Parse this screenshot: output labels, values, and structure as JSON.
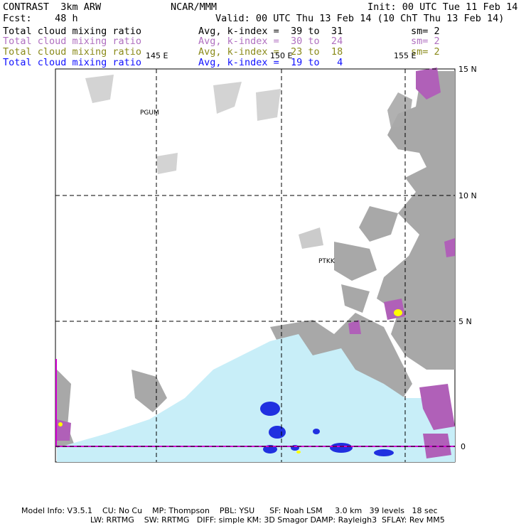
{
  "header": {
    "left": [
      "CONTRAST  3km ARW",
      "Fcst:    48 h"
    ],
    "center": "NCAR/MMM",
    "init": "Init: 00 UTC Tue 11 Feb 14",
    "valid": "Valid: 00 UTC Thu 13 Feb 14 (10 ChT Thu 13 Feb 14)"
  },
  "legend": [
    {
      "label": "Total cloud mixing ratio",
      "avg": "Avg, k-index =  39 to  31",
      "sm": "sm= 2",
      "color": "#000000"
    },
    {
      "label": "Total cloud mixing ratio",
      "avg": "Avg, k-index =  30 to  24",
      "sm": "sm= 2",
      "color": "#b070c0"
    },
    {
      "label": "Total cloud mixing ratio",
      "avg": "Avg, k-index =  23 to  18",
      "sm": "sm= 2",
      "color": "#8a8a1a"
    },
    {
      "label": "Total cloud mixing ratio",
      "avg": "Avg, k-index =  19 to   4",
      "sm": "",
      "color": "#1010ff"
    }
  ],
  "map": {
    "lon_labels": [
      "145 E",
      "150 E",
      "155 E"
    ],
    "lat_labels": [
      "15 N",
      "10 N",
      "5 N",
      "0"
    ],
    "stations": [
      "PGUM",
      "PTKK"
    ],
    "colors": {
      "cloud_gray": "#a8a8a8",
      "ice_light": "#c8eef8",
      "purple": "#b060b8",
      "blue": "#2030e0",
      "magenta": "#d000d0",
      "yellow": "#ffff00"
    }
  },
  "footer": {
    "line1": "Model Info: V3.5.1    CU: No Cu    MP: Thompson    PBL: YSU      SF: Noah LSM     3.0 km   39 levels   18 sec",
    "line2": "LW: RRTMG    SW: RRTMG   DIFF: simple KM: 3D Smagor DAMP: Rayleigh3  SFLAY: Rev MM5"
  }
}
